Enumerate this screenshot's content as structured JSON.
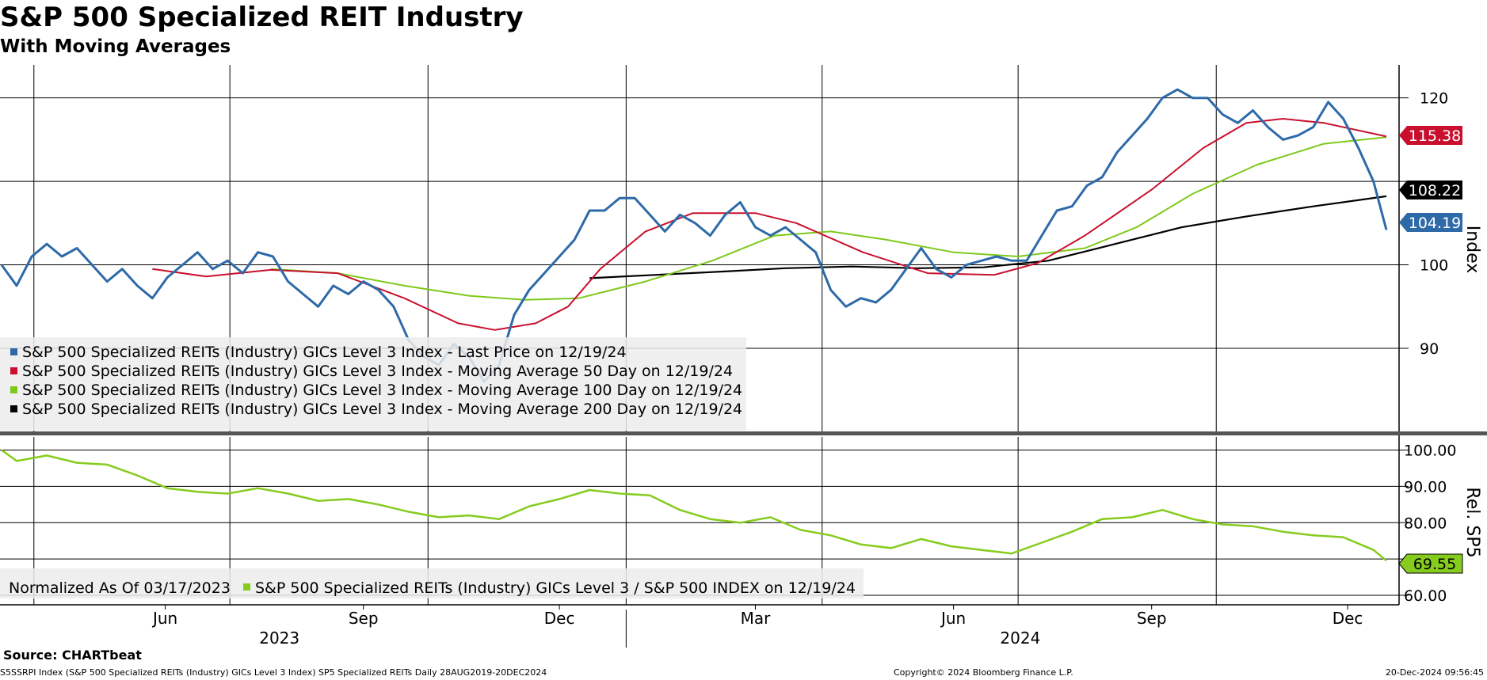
{
  "header": {
    "title": "S&P 500 Specialized REIT Industry",
    "subtitle": "With Moving Averages"
  },
  "footer": {
    "source": "Source: CHARTbeat",
    "ticker_line": "S5SSRPI Index (S&P 500 Specialized REITs (Industry) GICs Level 3 Index) SP5 Specialized REITs  Daily 28AUG2019-20DEC2024",
    "copyright": "Copyright© 2024 Bloomberg Finance L.P.",
    "timestamp": "20-Dec-2024 09:56:45"
  },
  "colors": {
    "last_price": "#2e6aa8",
    "ma50": "#c8102e",
    "ma100": "#7ec91c",
    "ma200": "#000000",
    "relative": "#86cc1e"
  },
  "chart_data": [
    {
      "type": "line",
      "panel": "upper",
      "ylabel": "Index",
      "ylim": [
        80,
        124
      ],
      "yticks": [
        90,
        100,
        110,
        120
      ],
      "ytick_labels": [
        "90",
        "100",
        "",
        "120"
      ],
      "x_tick_labels": [
        "Mar",
        "Jun",
        "Sep",
        "Dec",
        "Mar",
        "Jun",
        "Sep",
        "Dec"
      ],
      "year_labels": [
        "2023",
        "2024"
      ],
      "legend_position": "bottom-left",
      "legend": [
        "S&P 500 Specialized REITs (Industry) GICs Level 3 Index - Last Price on 12/19/24",
        "S&P 500 Specialized REITs (Industry) GICs Level 3 Index - Moving Average 50 Day on 12/19/24",
        "S&P 500 Specialized REITs (Industry) GICs Level 3 Index - Moving Average 100 Day on 12/19/24",
        "S&P 500 Specialized REITs (Industry) GICs Level 3 Index - Moving Average 200 Day on 12/19/24"
      ],
      "last_value_labels": [
        "104.19",
        "115.38",
        "108.22"
      ],
      "series": [
        {
          "key": "last_price",
          "points": [
            [
              "2023-03-17",
              100.0
            ],
            [
              "2023-03-24",
              97.5
            ],
            [
              "2023-03-31",
              101.0
            ],
            [
              "2023-04-07",
              102.5
            ],
            [
              "2023-04-14",
              101.0
            ],
            [
              "2023-04-21",
              102.0
            ],
            [
              "2023-04-28",
              100.0
            ],
            [
              "2023-05-05",
              98.0
            ],
            [
              "2023-05-12",
              99.5
            ],
            [
              "2023-05-19",
              97.5
            ],
            [
              "2023-05-26",
              96.0
            ],
            [
              "2023-06-02",
              98.5
            ],
            [
              "2023-06-09",
              100.0
            ],
            [
              "2023-06-16",
              101.5
            ],
            [
              "2023-06-23",
              99.5
            ],
            [
              "2023-06-30",
              100.5
            ],
            [
              "2023-07-07",
              99.0
            ],
            [
              "2023-07-14",
              101.5
            ],
            [
              "2023-07-21",
              101.0
            ],
            [
              "2023-07-28",
              98.0
            ],
            [
              "2023-08-04",
              96.5
            ],
            [
              "2023-08-11",
              95.0
            ],
            [
              "2023-08-18",
              97.5
            ],
            [
              "2023-08-25",
              96.5
            ],
            [
              "2023-09-01",
              98.0
            ],
            [
              "2023-09-08",
              97.0
            ],
            [
              "2023-09-15",
              95.0
            ],
            [
              "2023-09-22",
              91.0
            ],
            [
              "2023-09-29",
              89.0
            ],
            [
              "2023-10-06",
              88.0
            ],
            [
              "2023-10-13",
              90.5
            ],
            [
              "2023-10-20",
              89.0
            ],
            [
              "2023-10-27",
              86.0
            ],
            [
              "2023-11-03",
              88.0
            ],
            [
              "2023-11-10",
              94.0
            ],
            [
              "2023-11-17",
              97.0
            ],
            [
              "2023-11-24",
              99.0
            ],
            [
              "2023-12-01",
              101.0
            ],
            [
              "2023-12-08",
              103.0
            ],
            [
              "2023-12-15",
              106.5
            ],
            [
              "2023-12-22",
              106.5
            ],
            [
              "2023-12-29",
              108.0
            ],
            [
              "2024-01-05",
              108.0
            ],
            [
              "2024-01-12",
              106.0
            ],
            [
              "2024-01-19",
              104.0
            ],
            [
              "2024-01-26",
              106.0
            ],
            [
              "2024-02-02",
              105.0
            ],
            [
              "2024-02-09",
              103.5
            ],
            [
              "2024-02-16",
              106.0
            ],
            [
              "2024-02-23",
              107.5
            ],
            [
              "2024-03-01",
              104.5
            ],
            [
              "2024-03-08",
              103.5
            ],
            [
              "2024-03-15",
              104.5
            ],
            [
              "2024-03-22",
              103.0
            ],
            [
              "2024-03-29",
              101.5
            ],
            [
              "2024-04-05",
              97.0
            ],
            [
              "2024-04-12",
              95.0
            ],
            [
              "2024-04-19",
              96.0
            ],
            [
              "2024-04-26",
              95.5
            ],
            [
              "2024-05-03",
              97.0
            ],
            [
              "2024-05-10",
              99.5
            ],
            [
              "2024-05-17",
              102.0
            ],
            [
              "2024-05-24",
              99.5
            ],
            [
              "2024-05-31",
              98.5
            ],
            [
              "2024-06-07",
              100.0
            ],
            [
              "2024-06-14",
              100.5
            ],
            [
              "2024-06-21",
              101.0
            ],
            [
              "2024-06-28",
              100.5
            ],
            [
              "2024-07-05",
              100.5
            ],
            [
              "2024-07-12",
              103.5
            ],
            [
              "2024-07-19",
              106.5
            ],
            [
              "2024-07-26",
              107.0
            ],
            [
              "2024-08-02",
              109.5
            ],
            [
              "2024-08-09",
              110.5
            ],
            [
              "2024-08-16",
              113.5
            ],
            [
              "2024-08-23",
              115.5
            ],
            [
              "2024-08-30",
              117.5
            ],
            [
              "2024-09-06",
              120.0
            ],
            [
              "2024-09-13",
              121.0
            ],
            [
              "2024-09-20",
              120.0
            ],
            [
              "2024-09-27",
              120.0
            ],
            [
              "2024-10-04",
              118.0
            ],
            [
              "2024-10-11",
              117.0
            ],
            [
              "2024-10-18",
              118.5
            ],
            [
              "2024-10-25",
              116.5
            ],
            [
              "2024-11-01",
              115.0
            ],
            [
              "2024-11-08",
              115.5
            ],
            [
              "2024-11-15",
              116.5
            ],
            [
              "2024-11-22",
              119.5
            ],
            [
              "2024-11-29",
              117.5
            ],
            [
              "2024-12-06",
              114.0
            ],
            [
              "2024-12-13",
              110.0
            ],
            [
              "2024-12-19",
              104.19
            ]
          ]
        },
        {
          "key": "ma50",
          "points": [
            [
              "2023-05-26",
              99.5
            ],
            [
              "2023-06-20",
              98.6
            ],
            [
              "2023-07-20",
              99.4
            ],
            [
              "2023-08-20",
              99.0
            ],
            [
              "2023-09-20",
              96.0
            ],
            [
              "2023-10-15",
              93.0
            ],
            [
              "2023-11-01",
              92.2
            ],
            [
              "2023-11-20",
              93.0
            ],
            [
              "2023-12-05",
              95.0
            ],
            [
              "2023-12-20",
              99.5
            ],
            [
              "2024-01-10",
              104.0
            ],
            [
              "2024-02-01",
              106.2
            ],
            [
              "2024-03-01",
              106.2
            ],
            [
              "2024-03-20",
              105.0
            ],
            [
              "2024-04-20",
              101.5
            ],
            [
              "2024-05-20",
              99.0
            ],
            [
              "2024-06-20",
              98.8
            ],
            [
              "2024-07-10",
              100.2
            ],
            [
              "2024-08-01",
              103.5
            ],
            [
              "2024-09-01",
              109.0
            ],
            [
              "2024-09-25",
              114.0
            ],
            [
              "2024-10-15",
              117.0
            ],
            [
              "2024-11-01",
              117.5
            ],
            [
              "2024-11-20",
              117.0
            ],
            [
              "2024-12-19",
              115.38
            ]
          ]
        },
        {
          "key": "ma100",
          "points": [
            [
              "2023-07-20",
              99.5
            ],
            [
              "2023-08-20",
              99.0
            ],
            [
              "2023-09-20",
              97.5
            ],
            [
              "2023-10-20",
              96.3
            ],
            [
              "2023-11-15",
              95.8
            ],
            [
              "2023-12-10",
              96.0
            ],
            [
              "2024-01-10",
              98.0
            ],
            [
              "2024-02-10",
              100.5
            ],
            [
              "2024-03-10",
              103.5
            ],
            [
              "2024-04-05",
              104.0
            ],
            [
              "2024-05-01",
              103.0
            ],
            [
              "2024-06-01",
              101.5
            ],
            [
              "2024-07-01",
              101.0
            ],
            [
              "2024-08-01",
              102.0
            ],
            [
              "2024-08-25",
              104.5
            ],
            [
              "2024-09-20",
              108.5
            ],
            [
              "2024-10-20",
              112.0
            ],
            [
              "2024-11-20",
              114.5
            ],
            [
              "2024-12-19",
              115.3
            ]
          ]
        },
        {
          "key": "ma200",
          "points": [
            [
              "2023-12-15",
              98.4
            ],
            [
              "2024-01-15",
              98.8
            ],
            [
              "2024-02-15",
              99.2
            ],
            [
              "2024-03-15",
              99.6
            ],
            [
              "2024-04-15",
              99.8
            ],
            [
              "2024-05-15",
              99.6
            ],
            [
              "2024-06-15",
              99.7
            ],
            [
              "2024-07-15",
              100.5
            ],
            [
              "2024-08-15",
              102.5
            ],
            [
              "2024-09-15",
              104.5
            ],
            [
              "2024-10-15",
              105.8
            ],
            [
              "2024-11-15",
              107.0
            ],
            [
              "2024-12-19",
              108.22
            ]
          ]
        }
      ]
    },
    {
      "type": "line",
      "panel": "lower",
      "ylabel": "Rel. SP5",
      "ylim": [
        57,
        101.5
      ],
      "yticks": [
        60,
        70,
        80,
        90,
        100
      ],
      "ytick_labels": [
        "60.00",
        "",
        "80.00",
        "90.00",
        "100.00"
      ],
      "legend": [
        "Normalized As Of 03/17/2023",
        "S&P 500 Specialized REITs (Industry) GICs Level 3 / S&P 500 INDEX on 12/19/24"
      ],
      "last_value_label": "69.55",
      "series": [
        {
          "key": "relative",
          "points": [
            [
              "2023-03-17",
              100.0
            ],
            [
              "2023-03-24",
              97.0
            ],
            [
              "2023-04-07",
              98.5
            ],
            [
              "2023-04-21",
              96.5
            ],
            [
              "2023-05-05",
              96.0
            ],
            [
              "2023-05-19",
              93.0
            ],
            [
              "2023-06-02",
              89.5
            ],
            [
              "2023-06-16",
              88.5
            ],
            [
              "2023-06-30",
              88.0
            ],
            [
              "2023-07-14",
              89.5
            ],
            [
              "2023-07-28",
              88.0
            ],
            [
              "2023-08-11",
              86.0
            ],
            [
              "2023-08-25",
              86.5
            ],
            [
              "2023-09-08",
              85.0
            ],
            [
              "2023-09-22",
              83.0
            ],
            [
              "2023-10-06",
              81.5
            ],
            [
              "2023-10-20",
              82.0
            ],
            [
              "2023-11-03",
              81.0
            ],
            [
              "2023-11-17",
              84.5
            ],
            [
              "2023-12-01",
              86.5
            ],
            [
              "2023-12-15",
              89.0
            ],
            [
              "2023-12-29",
              88.0
            ],
            [
              "2024-01-12",
              87.5
            ],
            [
              "2024-01-26",
              83.5
            ],
            [
              "2024-02-09",
              81.0
            ],
            [
              "2024-02-23",
              80.0
            ],
            [
              "2024-03-08",
              81.5
            ],
            [
              "2024-03-22",
              78.0
            ],
            [
              "2024-04-05",
              76.5
            ],
            [
              "2024-04-19",
              74.0
            ],
            [
              "2024-05-03",
              73.0
            ],
            [
              "2024-05-17",
              75.5
            ],
            [
              "2024-05-31",
              73.5
            ],
            [
              "2024-06-14",
              72.5
            ],
            [
              "2024-06-28",
              71.5
            ],
            [
              "2024-07-12",
              74.5
            ],
            [
              "2024-07-26",
              77.5
            ],
            [
              "2024-08-09",
              81.0
            ],
            [
              "2024-08-23",
              81.5
            ],
            [
              "2024-09-06",
              83.5
            ],
            [
              "2024-09-20",
              81.0
            ],
            [
              "2024-10-04",
              79.5
            ],
            [
              "2024-10-18",
              79.0
            ],
            [
              "2024-11-01",
              77.5
            ],
            [
              "2024-11-15",
              76.5
            ],
            [
              "2024-11-29",
              76.0
            ],
            [
              "2024-12-13",
              72.5
            ],
            [
              "2024-12-19",
              69.55
            ]
          ]
        }
      ]
    }
  ]
}
